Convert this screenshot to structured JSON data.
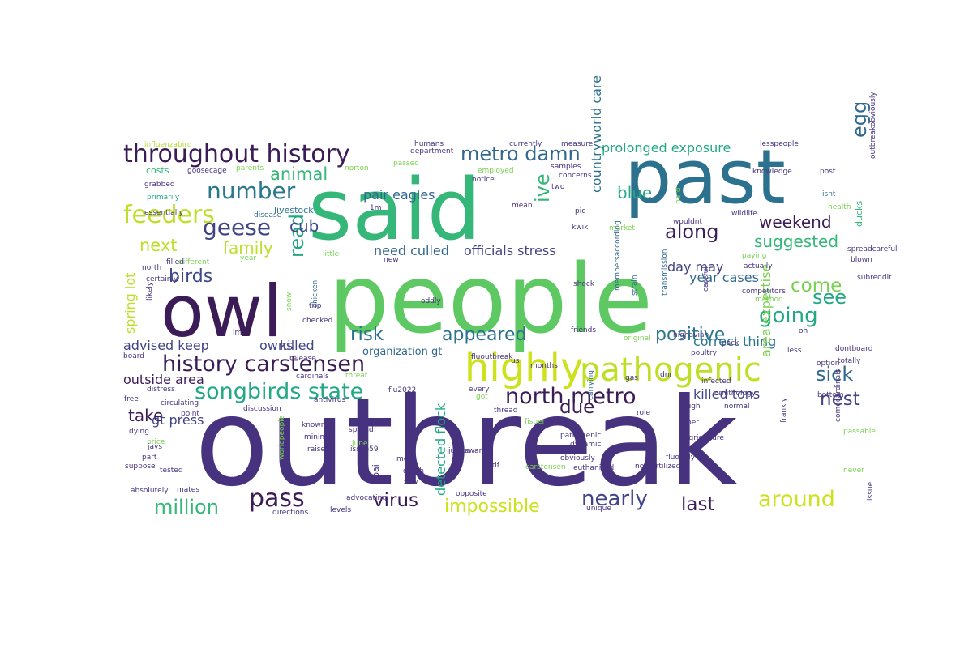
{
  "cloud": {
    "words": [
      {
        "text": "outbreak",
        "color": "#46327e"
      },
      {
        "text": "people",
        "color": "#5ec962"
      },
      {
        "text": "said",
        "color": "#35b779"
      },
      {
        "text": "past",
        "color": "#2c728e"
      },
      {
        "text": "owl",
        "color": "#3b1c57"
      },
      {
        "text": "highly",
        "color": "#cde11d"
      },
      {
        "text": "pathogenic",
        "color": "#bddf26"
      },
      {
        "text": "throughout history",
        "color": "#3b1c57"
      },
      {
        "text": "history carstensen",
        "color": "#3b1c57"
      },
      {
        "text": "north metro",
        "color": "#3b1c57"
      },
      {
        "text": "feeders",
        "color": "#bddf26"
      },
      {
        "text": "geese",
        "color": "#414487"
      },
      {
        "text": "number",
        "color": "#2a788e"
      },
      {
        "text": "pass",
        "color": "#3b1c57"
      },
      {
        "text": "songbirds state",
        "color": "#22a884"
      },
      {
        "text": "around",
        "color": "#cde11d"
      },
      {
        "text": "nearly",
        "color": "#414487"
      },
      {
        "text": "million",
        "color": "#35b779"
      },
      {
        "text": "metro damn",
        "color": "#31688e"
      },
      {
        "text": "going",
        "color": "#22a884"
      },
      {
        "text": "see",
        "color": "#22a884"
      },
      {
        "text": "sick",
        "color": "#31688e"
      },
      {
        "text": "along",
        "color": "#3b1c57"
      },
      {
        "text": "egg",
        "color": "#31688e"
      },
      {
        "text": "nest",
        "color": "#414487"
      },
      {
        "text": "come",
        "color": "#7ad151"
      },
      {
        "text": "read",
        "color": "#22a884"
      },
      {
        "text": "ive",
        "color": "#35b779"
      },
      {
        "text": "virus",
        "color": "#3b1c57"
      },
      {
        "text": "due",
        "color": "#3b1c57"
      },
      {
        "text": "last",
        "color": "#3b1c57"
      },
      {
        "text": "impossible",
        "color": "#cde11d"
      },
      {
        "text": "risk",
        "color": "#2c728e"
      },
      {
        "text": "appeared",
        "color": "#2c728e"
      },
      {
        "text": "positive",
        "color": "#2a788e"
      },
      {
        "text": "birds",
        "color": "#3e4989"
      },
      {
        "text": "animal",
        "color": "#35b779"
      },
      {
        "text": "next",
        "color": "#bddf26"
      },
      {
        "text": "family",
        "color": "#bddf26"
      },
      {
        "text": "cub",
        "color": "#3e4989"
      },
      {
        "text": "blue",
        "color": "#22a884"
      },
      {
        "text": "weekend",
        "color": "#3b1c57"
      },
      {
        "text": "suggested",
        "color": "#35b779"
      },
      {
        "text": "take",
        "color": "#3b1c57"
      },
      {
        "text": "advised keep",
        "color": "#414487"
      },
      {
        "text": "outside area",
        "color": "#3b1c57"
      },
      {
        "text": "officials stress",
        "color": "#414487"
      },
      {
        "text": "need culled",
        "color": "#31688e"
      },
      {
        "text": "pair eagles",
        "color": "#31688e"
      },
      {
        "text": "prolonged exposure",
        "color": "#22a884"
      },
      {
        "text": "countryworld care",
        "color": "#2c728e"
      },
      {
        "text": "year cases",
        "color": "#31688e"
      },
      {
        "text": "correct thing",
        "color": "#2a788e"
      },
      {
        "text": "killed tons",
        "color": "#414487"
      },
      {
        "text": "area expertise",
        "color": "#7ad151"
      },
      {
        "text": "detected flock",
        "color": "#22a884"
      },
      {
        "text": "day may",
        "color": "#414487"
      },
      {
        "text": "owns",
        "color": "#414487"
      },
      {
        "text": "killed",
        "color": "#414487"
      },
      {
        "text": "gt press",
        "color": "#414487"
      },
      {
        "text": "spring lot",
        "color": "#bddf26"
      },
      {
        "text": "organization gt",
        "color": "#31688e"
      },
      {
        "text": "mean",
        "color": "#46327e"
      },
      {
        "text": "livestock",
        "color": "#2c728e"
      },
      {
        "text": "influenzabird",
        "color": "#b5de2b"
      },
      {
        "text": "costs",
        "color": "#35b779"
      },
      {
        "text": "goosecage",
        "color": "#46327e"
      },
      {
        "text": "grabbed",
        "color": "#46327e"
      },
      {
        "text": "primarily",
        "color": "#22a884"
      },
      {
        "text": "essentially",
        "color": "#46327e"
      },
      {
        "text": "north",
        "color": "#46327e"
      },
      {
        "text": "filled",
        "color": "#46327e"
      },
      {
        "text": "different",
        "color": "#7ad151"
      },
      {
        "text": "year",
        "color": "#7ad151"
      },
      {
        "text": "certainly",
        "color": "#46327e"
      },
      {
        "text": "likely",
        "color": "#46327e"
      },
      {
        "text": "disease",
        "color": "#31688e"
      },
      {
        "text": "parents",
        "color": "#7ad151"
      },
      {
        "text": "norton",
        "color": "#7ad151"
      },
      {
        "text": "passed",
        "color": "#7ad151"
      },
      {
        "text": "employed",
        "color": "#7ad151"
      },
      {
        "text": "notice",
        "color": "#46327e"
      },
      {
        "text": "humans",
        "color": "#46327e"
      },
      {
        "text": "department",
        "color": "#46327e"
      },
      {
        "text": "currently",
        "color": "#46327e"
      },
      {
        "text": "measure",
        "color": "#46327e"
      },
      {
        "text": "samples",
        "color": "#46327e"
      },
      {
        "text": "concerns",
        "color": "#46327e"
      },
      {
        "text": "lesspeople",
        "color": "#46327e"
      },
      {
        "text": "knowledge",
        "color": "#46327e"
      },
      {
        "text": "post",
        "color": "#46327e"
      },
      {
        "text": "isnt",
        "color": "#2c728e"
      },
      {
        "text": "health",
        "color": "#7ad151"
      },
      {
        "text": "hard",
        "color": "#7ad151"
      },
      {
        "text": "wildlife",
        "color": "#46327e"
      },
      {
        "text": "kwik",
        "color": "#46327e"
      },
      {
        "text": "pic",
        "color": "#46327e"
      },
      {
        "text": "two",
        "color": "#46327e"
      },
      {
        "text": "1m",
        "color": "#46327e"
      },
      {
        "text": "wouldnt",
        "color": "#46327e"
      },
      {
        "text": "ducks",
        "color": "#35b779"
      },
      {
        "text": "market",
        "color": "#7ad151"
      },
      {
        "text": "membersaccording",
        "color": "#31688e"
      },
      {
        "text": "outbreakobviously",
        "color": "#46327e"
      },
      {
        "text": "spreadcareful",
        "color": "#46327e"
      },
      {
        "text": "subreddit",
        "color": "#46327e"
      },
      {
        "text": "blown",
        "color": "#46327e"
      },
      {
        "text": "actually",
        "color": "#46327e"
      },
      {
        "text": "paying",
        "color": "#7ad151"
      },
      {
        "text": "competitors",
        "color": "#46327e"
      },
      {
        "text": "careful",
        "color": "#46327e"
      },
      {
        "text": "transmission",
        "color": "#31688e"
      },
      {
        "text": "strain",
        "color": "#31688e"
      },
      {
        "text": "shock",
        "color": "#46327e"
      },
      {
        "text": "little",
        "color": "#7ad151"
      },
      {
        "text": "new",
        "color": "#46327e"
      },
      {
        "text": "chicken",
        "color": "#31688e"
      },
      {
        "text": "snow",
        "color": "#7ad151"
      },
      {
        "text": "trip",
        "color": "#46327e"
      },
      {
        "text": "checked",
        "color": "#46327e"
      },
      {
        "text": "oddly",
        "color": "#46327e"
      },
      {
        "text": "im",
        "color": "#46327e"
      },
      {
        "text": "release",
        "color": "#46327e"
      },
      {
        "text": "method",
        "color": "#7ad151"
      },
      {
        "text": "friends",
        "color": "#46327e"
      },
      {
        "text": "original",
        "color": "#7ad151"
      },
      {
        "text": "oh",
        "color": "#46327e"
      },
      {
        "text": "pack",
        "color": "#46327e"
      },
      {
        "text": "poultry",
        "color": "#46327e"
      },
      {
        "text": "highavian",
        "color": "#46327e"
      },
      {
        "text": "dnr",
        "color": "#46327e"
      },
      {
        "text": "less",
        "color": "#46327e"
      },
      {
        "text": "dontboard",
        "color": "#46327e"
      },
      {
        "text": "totally",
        "color": "#46327e"
      },
      {
        "text": "option",
        "color": "#46327e"
      },
      {
        "text": "board",
        "color": "#46327e"
      },
      {
        "text": "cardinals",
        "color": "#46327e"
      },
      {
        "text": "threat",
        "color": "#7ad151"
      },
      {
        "text": "fluoutbreak",
        "color": "#46327e"
      },
      {
        "text": "us",
        "color": "#46327e"
      },
      {
        "text": "months",
        "color": "#46327e"
      },
      {
        "text": "gas",
        "color": "#46327e"
      },
      {
        "text": "infected",
        "color": "#46327e"
      },
      {
        "text": "ornithology",
        "color": "#46327e"
      },
      {
        "text": "bottom",
        "color": "#46327e"
      },
      {
        "text": "distress",
        "color": "#46327e"
      },
      {
        "text": "free",
        "color": "#46327e"
      },
      {
        "text": "circulating",
        "color": "#46327e"
      },
      {
        "text": "point",
        "color": "#46327e"
      },
      {
        "text": "discussion",
        "color": "#46327e"
      },
      {
        "text": "antivirus",
        "color": "#46327e"
      },
      {
        "text": "flu2022",
        "color": "#46327e"
      },
      {
        "text": "got",
        "color": "#7ad151"
      },
      {
        "text": "every",
        "color": "#46327e"
      },
      {
        "text": "carrying",
        "color": "#31688e"
      },
      {
        "text": "role",
        "color": "#46327e"
      },
      {
        "text": "high",
        "color": "#46327e"
      },
      {
        "text": "normal",
        "color": "#46327e"
      },
      {
        "text": "per",
        "color": "#46327e"
      },
      {
        "text": "thread",
        "color": "#46327e"
      },
      {
        "text": "fisper",
        "color": "#7ad151"
      },
      {
        "text": "comecardinals",
        "color": "#46327e"
      },
      {
        "text": "dying",
        "color": "#46327e"
      },
      {
        "text": "price",
        "color": "#7ad151"
      },
      {
        "text": "known",
        "color": "#46327e"
      },
      {
        "text": "minimal",
        "color": "#46327e"
      },
      {
        "text": "spread",
        "color": "#46327e"
      },
      {
        "text": "june",
        "color": "#7ad151"
      },
      {
        "text": "raised",
        "color": "#46327e"
      },
      {
        "text": "jays",
        "color": "#46327e"
      },
      {
        "text": "part",
        "color": "#46327e"
      },
      {
        "text": "suppose",
        "color": "#46327e"
      },
      {
        "text": "tested",
        "color": "#46327e"
      },
      {
        "text": "absolutely",
        "color": "#46327e"
      },
      {
        "text": "mates",
        "color": "#46327e"
      },
      {
        "text": "advocating",
        "color": "#46327e"
      },
      {
        "text": "directions",
        "color": "#46327e"
      },
      {
        "text": "levels",
        "color": "#46327e"
      },
      {
        "text": "worldpeople",
        "color": "#7ad151"
      },
      {
        "text": "issue59",
        "color": "#46327e"
      },
      {
        "text": "hpai",
        "color": "#46327e"
      },
      {
        "text": "meat",
        "color": "#46327e"
      },
      {
        "text": "death",
        "color": "#46327e"
      },
      {
        "text": "saw",
        "color": "#46327e"
      },
      {
        "text": "jumps",
        "color": "#46327e"
      },
      {
        "text": "swans",
        "color": "#46327e"
      },
      {
        "text": "gtif",
        "color": "#46327e"
      },
      {
        "text": "carstensen",
        "color": "#7ad151"
      },
      {
        "text": "opposite",
        "color": "#46327e"
      },
      {
        "text": "pathogenic",
        "color": "#46327e"
      },
      {
        "text": "dynamic",
        "color": "#46327e"
      },
      {
        "text": "obviously",
        "color": "#46327e"
      },
      {
        "text": "euthanized",
        "color": "#46327e"
      },
      {
        "text": "unique",
        "color": "#46327e"
      },
      {
        "text": "fluoddly",
        "color": "#46327e"
      },
      {
        "text": "nonfertilized",
        "color": "#46327e"
      },
      {
        "text": "agriculture",
        "color": "#46327e"
      },
      {
        "text": "frankly",
        "color": "#46327e"
      },
      {
        "text": "issue",
        "color": "#46327e"
      },
      {
        "text": "passable",
        "color": "#7ad151"
      },
      {
        "text": "never",
        "color": "#7ad151"
      }
    ]
  }
}
